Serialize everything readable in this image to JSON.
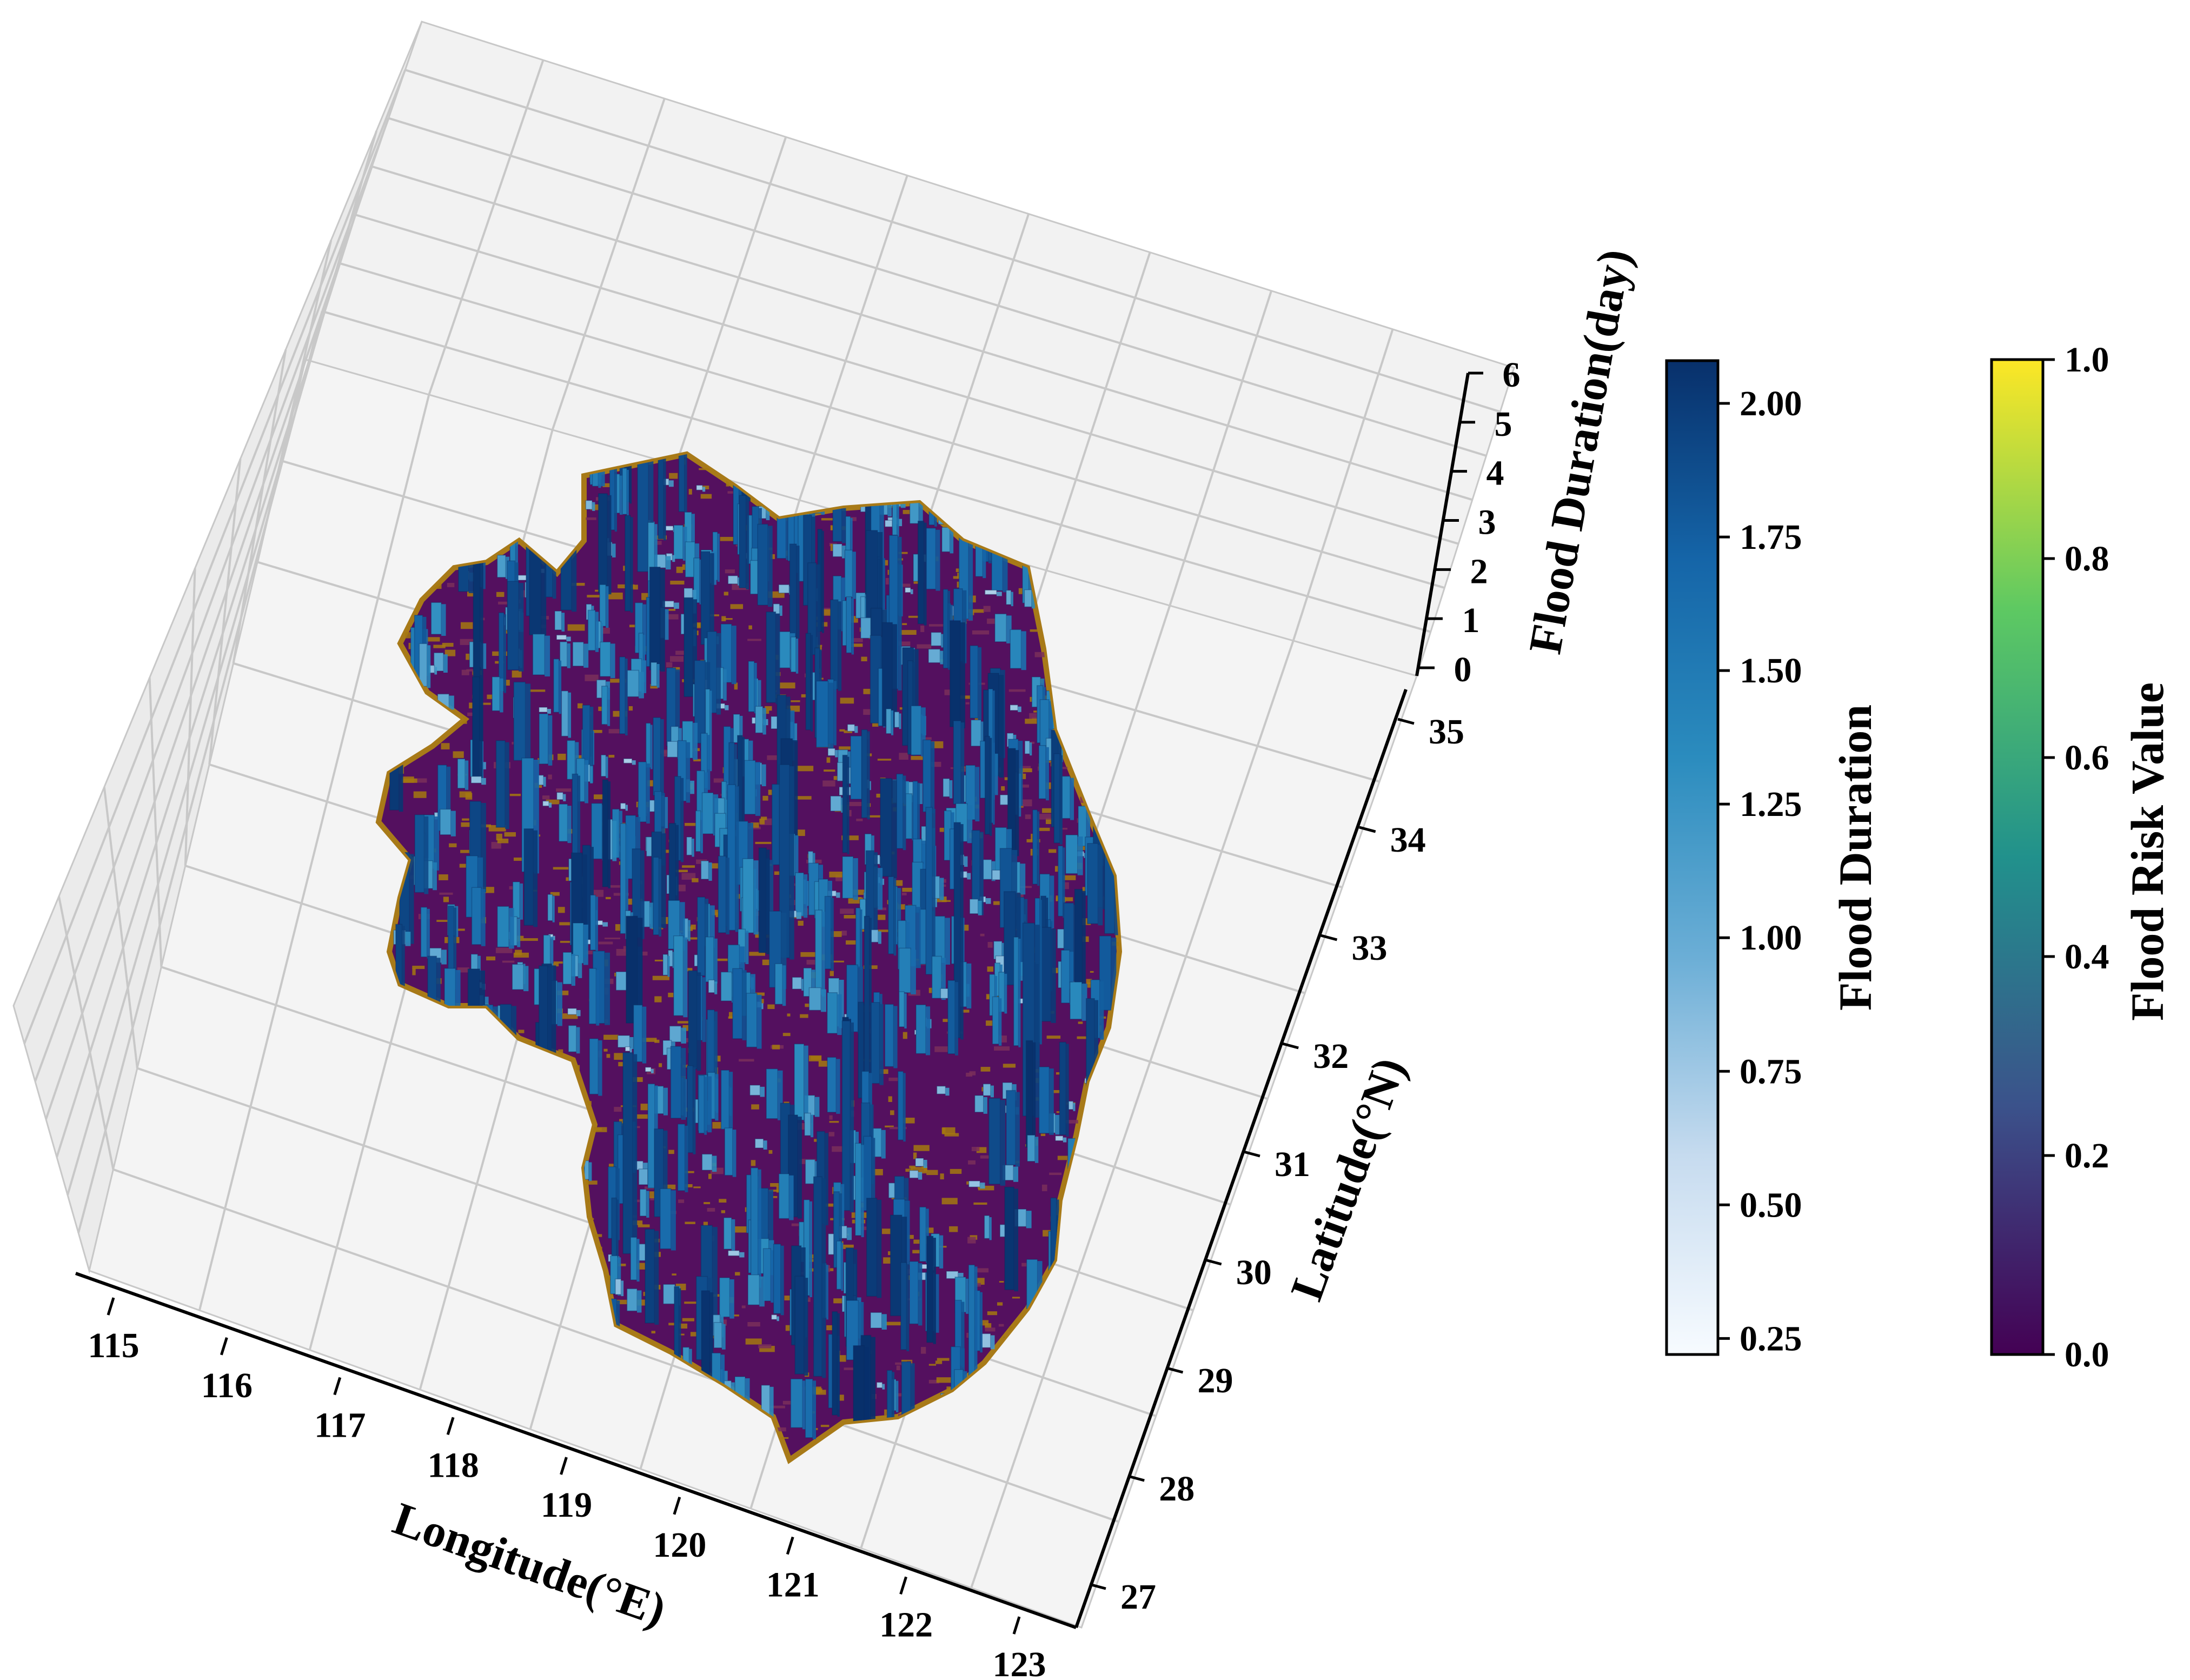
{
  "chart_data": {
    "type": "bar3d",
    "x_axis": {
      "label": "Longitude(°E)",
      "ticks": [
        "115",
        "116",
        "117",
        "118",
        "119",
        "120",
        "121",
        "122",
        "123"
      ],
      "range": [
        114.8,
        123.3
      ]
    },
    "y_axis": {
      "label": "Latitude(°N)",
      "ticks": [
        "27",
        "28",
        "29",
        "30",
        "31",
        "32",
        "33",
        "34",
        "35"
      ],
      "range": [
        26.8,
        35.3
      ]
    },
    "z_axis": {
      "label": "Flood Duration(day)",
      "ticks": [
        "0",
        "1",
        "2",
        "3",
        "4",
        "5",
        "6"
      ],
      "range": [
        0,
        6
      ]
    },
    "surface": {
      "name": "Flood Risk Value",
      "colormap": "viridis",
      "range": [
        0.0,
        1.0
      ],
      "dominant_colors": [
        "#4a1060",
        "#b07a10"
      ]
    },
    "bars": {
      "name": "Flood Duration",
      "colormap": "Blues",
      "range": [
        0.22,
        2.08
      ]
    },
    "colorbars": [
      {
        "title": "Flood Duration",
        "ticks": [
          "0.25",
          "0.50",
          "0.75",
          "1.00",
          "1.25",
          "1.50",
          "1.75",
          "2.00"
        ],
        "range": [
          0.22,
          2.08
        ],
        "colors": [
          "#f7fbff",
          "#c6dbef",
          "#6baed6",
          "#2b8cbe",
          "#1565a8",
          "#08306b"
        ]
      },
      {
        "title": "Flood Risk Value",
        "ticks": [
          "0.0",
          "0.2",
          "0.4",
          "0.6",
          "0.8",
          "1.0"
        ],
        "range": [
          0.0,
          1.0
        ],
        "colors": [
          "#440154",
          "#3b528b",
          "#21918c",
          "#5ec962",
          "#fde725"
        ]
      }
    ],
    "grid": true
  }
}
